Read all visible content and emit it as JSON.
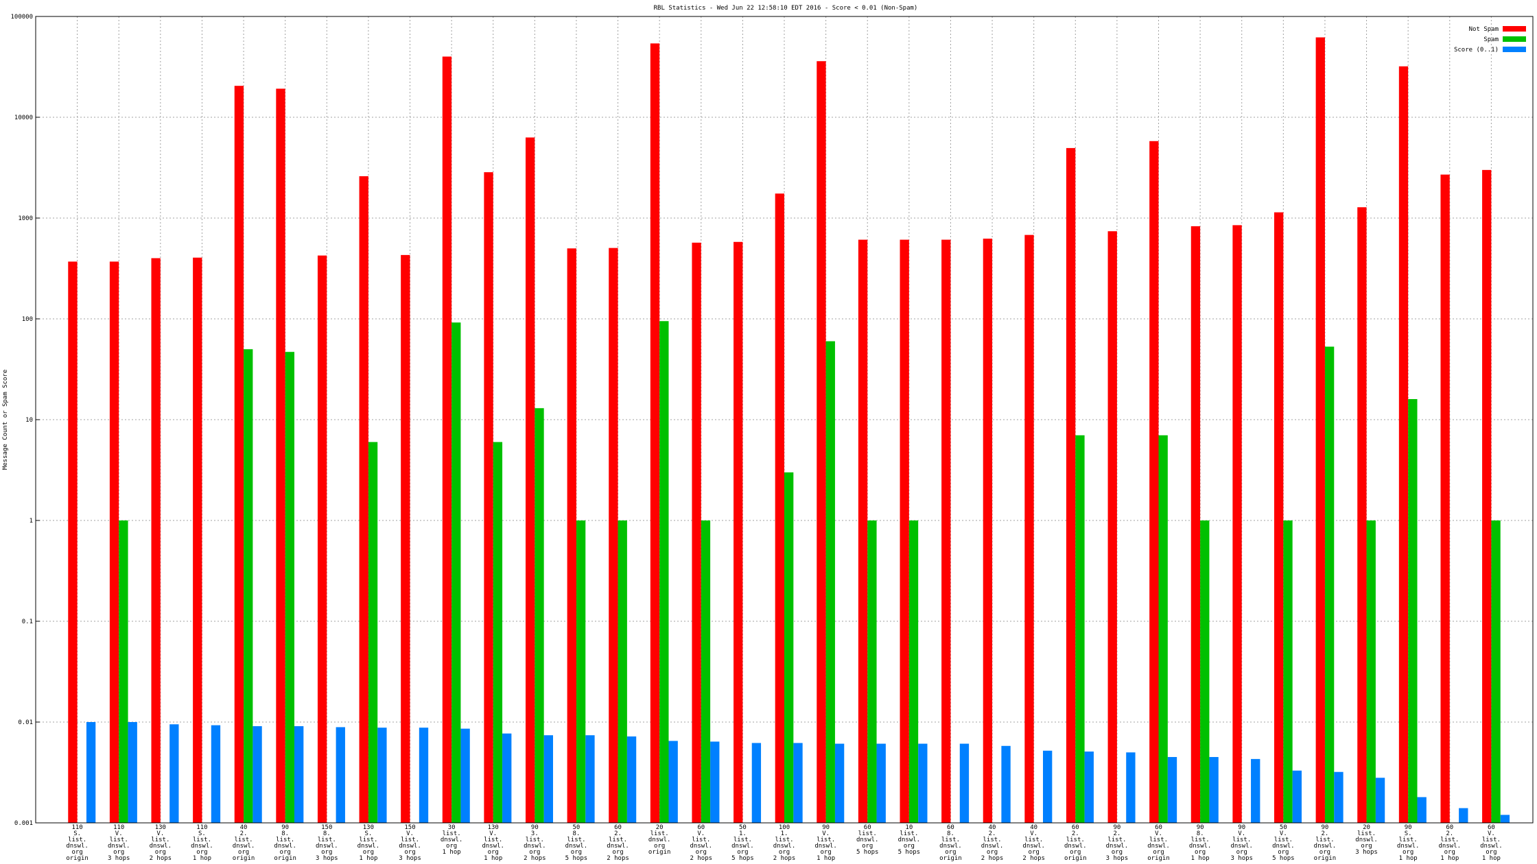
{
  "chart_data": {
    "type": "bar",
    "title": "RBL Statistics - Wed Jun 22 12:58:10 EDT 2016 - Score < 0.01 (Non-Spam)",
    "y_label": "Message Count or Spam Score",
    "log_scale": true,
    "grid": true,
    "legend_position": "top-right",
    "categories": [
      [
        "110",
        "S.",
        "list.",
        "dnswl.",
        "org",
        "origin"
      ],
      [
        "110",
        "V.",
        "list.",
        "dnswl.",
        "org",
        "3 hops"
      ],
      [
        "130",
        "V.",
        "list.",
        "dnswl.",
        "org",
        "2 hops"
      ],
      [
        "110",
        "S.",
        "list.",
        "dnswl.",
        "org",
        "1 hop"
      ],
      [
        "40",
        "2.",
        "list.",
        "dnswl.",
        "org",
        "origin"
      ],
      [
        "90",
        "8.",
        "list.",
        "dnswl.",
        "org",
        "origin"
      ],
      [
        "150",
        "8.",
        "list.",
        "dnswl.",
        "org",
        "3 hops"
      ],
      [
        "130",
        "S.",
        "list.",
        "dnswl.",
        "org",
        "1 hop"
      ],
      [
        "150",
        "V.",
        "list.",
        "dnswl.",
        "org",
        "3 hops"
      ],
      [
        "30",
        "list.",
        "dnswl.",
        "org",
        "1 hop"
      ],
      [
        "130",
        "V.",
        "list.",
        "dnswl.",
        "org",
        "1 hop"
      ],
      [
        "90",
        "3.",
        "list.",
        "dnswl.",
        "org",
        "2 hops"
      ],
      [
        "50",
        "8.",
        "list.",
        "dnswl.",
        "org",
        "5 hops"
      ],
      [
        "60",
        "2.",
        "list.",
        "dnswl.",
        "org",
        "2 hops"
      ],
      [
        "20",
        "list.",
        "dnswl.",
        "org",
        "origin"
      ],
      [
        "60",
        "V.",
        "list.",
        "dnswl.",
        "org",
        "2 hops"
      ],
      [
        "50",
        "1.",
        "list.",
        "dnswl.",
        "org",
        "5 hops"
      ],
      [
        "100",
        "1.",
        "list.",
        "dnswl.",
        "org",
        "2 hops"
      ],
      [
        "90",
        "V.",
        "list.",
        "dnswl.",
        "org",
        "1 hop"
      ],
      [
        "60",
        "list.",
        "dnswl.",
        "org",
        "5 hops"
      ],
      [
        "10",
        "list.",
        "dnswl.",
        "org",
        "5 hops"
      ],
      [
        "60",
        "8.",
        "list.",
        "dnswl.",
        "org",
        "origin"
      ],
      [
        "40",
        "2.",
        "list.",
        "dnswl.",
        "org",
        "2 hops"
      ],
      [
        "40",
        "V.",
        "list.",
        "dnswl.",
        "org",
        "2 hops"
      ],
      [
        "60",
        "2.",
        "list.",
        "dnswl.",
        "org",
        "origin"
      ],
      [
        "90",
        "2.",
        "list.",
        "dnswl.",
        "org",
        "3 hops"
      ],
      [
        "60",
        "V.",
        "list.",
        "dnswl.",
        "org",
        "origin"
      ],
      [
        "90",
        "8.",
        "list.",
        "dnswl.",
        "org",
        "1 hop"
      ],
      [
        "90",
        "V.",
        "list.",
        "dnswl.",
        "org",
        "3 hops"
      ],
      [
        "50",
        "V.",
        "list.",
        "dnswl.",
        "org",
        "5 hops"
      ],
      [
        "90",
        "2.",
        "list.",
        "dnswl.",
        "org",
        "origin"
      ],
      [
        "20",
        "list.",
        "dnswl.",
        "org",
        "3 hops"
      ],
      [
        "90",
        "S.",
        "list.",
        "dnswl.",
        "org",
        "1 hop"
      ],
      [
        "60",
        "2.",
        "list.",
        "dnswl.",
        "org",
        "1 hop"
      ],
      [
        "60",
        "V.",
        "list.",
        "dnswl.",
        "org",
        "1 hop"
      ]
    ],
    "series": [
      {
        "name": "Not Spam",
        "color": "#ff0000",
        "values": [
          370,
          370,
          400,
          405,
          20500,
          19200,
          425,
          2600,
          430,
          40000,
          2850,
          6300,
          500,
          505,
          54000,
          570,
          580,
          1750,
          36000,
          610,
          610,
          610,
          625,
          680,
          4950,
          740,
          5800,
          830,
          850,
          1140,
          62000,
          1280,
          32000,
          2700,
          3000
        ]
      },
      {
        "name": "Spam",
        "color": "#00c000",
        "values": [
          null,
          1,
          null,
          null,
          50,
          47,
          null,
          6,
          null,
          92,
          6,
          13,
          1,
          1,
          95,
          1,
          null,
          3,
          60,
          1,
          1,
          null,
          null,
          null,
          7,
          null,
          7,
          1,
          null,
          1,
          53,
          1,
          16,
          null,
          1
        ]
      },
      {
        "name": "Score (0..1)",
        "color": "#0080ff",
        "values": [
          0.01,
          0.01,
          0.0095,
          0.0093,
          0.0091,
          0.0091,
          0.0089,
          0.0088,
          0.0088,
          0.0086,
          0.0077,
          0.0074,
          0.0074,
          0.0072,
          0.0065,
          0.0064,
          0.0062,
          0.0062,
          0.0061,
          0.0061,
          0.0061,
          0.0061,
          0.0058,
          0.0052,
          0.0051,
          0.005,
          0.0045,
          0.0045,
          0.0043,
          0.0033,
          0.0032,
          0.0028,
          0.0018,
          0.0014,
          0.0012
        ]
      }
    ],
    "ylim": [
      0.001,
      100000
    ],
    "yticks": [
      0.001,
      0.01,
      0.1,
      1,
      10,
      100,
      1000,
      10000,
      100000
    ]
  }
}
